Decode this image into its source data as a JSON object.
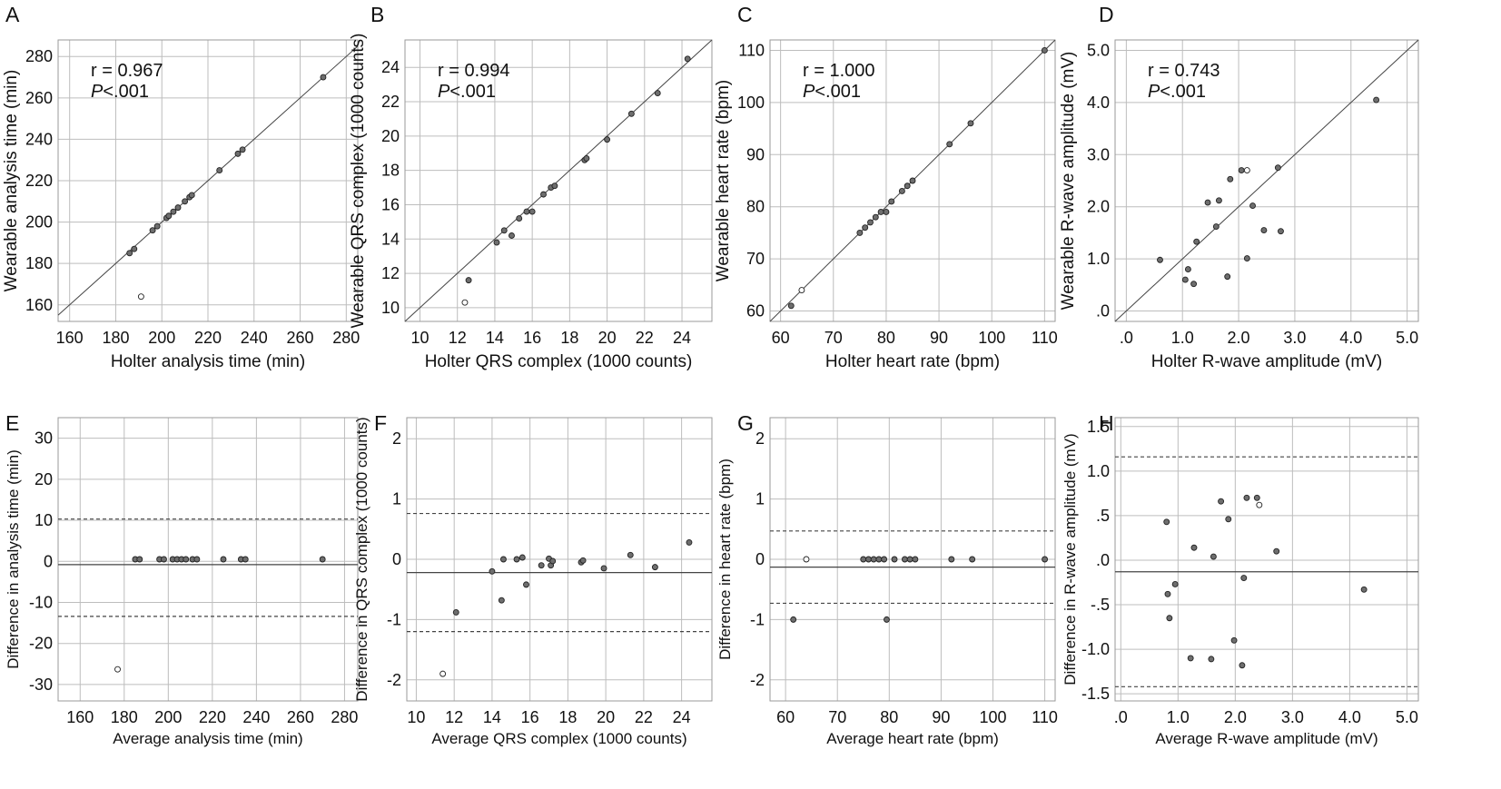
{
  "colors": {
    "grid": "#bdbdbd",
    "frame": "#9a9a9a",
    "line": "#444444",
    "point_fill": "#6e6e6e",
    "point_open_fill": "#ffffff",
    "point_stroke": "#222222"
  },
  "chart_data": [
    {
      "panel": "A",
      "type": "scatter",
      "xlabel": "Holter analysis time (min)",
      "ylabel": "Wearable analysis time (min)",
      "xlim": [
        155,
        285
      ],
      "ylim": [
        152,
        288
      ],
      "xticks": [
        160,
        180,
        200,
        220,
        240,
        260,
        280
      ],
      "xtick_labels": [
        "160",
        "180",
        "200",
        "220",
        "240",
        "260",
        "280"
      ],
      "yticks": [
        160,
        180,
        200,
        220,
        240,
        260,
        280
      ],
      "ytick_labels": [
        "160",
        "180",
        "200",
        "220",
        "240",
        "260",
        "280"
      ],
      "annotation_r": "r = 0.967",
      "annotation_p": "P",
      "annotation_p_rest": "<.001",
      "identity_line": true,
      "hlines": [],
      "points": [
        [
          186,
          185
        ],
        [
          188,
          187
        ],
        [
          196,
          196
        ],
        [
          198,
          198
        ],
        [
          202,
          202
        ],
        [
          203,
          203
        ],
        [
          205,
          205
        ],
        [
          207,
          207
        ],
        [
          210,
          210
        ],
        [
          212,
          212
        ],
        [
          213,
          213
        ],
        [
          225,
          225
        ],
        [
          233,
          233
        ],
        [
          235,
          235
        ],
        [
          270,
          270
        ]
      ],
      "open_points": [
        [
          191,
          164
        ]
      ]
    },
    {
      "panel": "B",
      "type": "scatter",
      "xlabel": "Holter QRS complex (1000 counts)",
      "ylabel": "Wearable QRS complex (1000 counts)",
      "xlim": [
        9.2,
        25.6
      ],
      "ylim": [
        9.2,
        25.6
      ],
      "xticks": [
        10,
        12,
        14,
        16,
        18,
        20,
        22,
        24
      ],
      "xtick_labels": [
        "10",
        "12",
        "14",
        "16",
        "18",
        "20",
        "22",
        "24"
      ],
      "yticks": [
        10,
        12,
        14,
        16,
        18,
        20,
        22,
        24
      ],
      "ytick_labels": [
        "10",
        "12",
        "14",
        "16",
        "18",
        "20",
        "22",
        "24"
      ],
      "annotation_r": "r = 0.994",
      "annotation_p": "P",
      "annotation_p_rest": "<.001",
      "identity_line": true,
      "hlines": [],
      "points": [
        [
          12.6,
          11.6
        ],
        [
          14.1,
          13.8
        ],
        [
          14.5,
          14.5
        ],
        [
          14.9,
          14.2
        ],
        [
          15.3,
          15.2
        ],
        [
          15.7,
          15.6
        ],
        [
          16.0,
          15.6
        ],
        [
          16.6,
          16.6
        ],
        [
          17.0,
          17.0
        ],
        [
          17.2,
          17.1
        ],
        [
          18.8,
          18.6
        ],
        [
          18.9,
          18.7
        ],
        [
          20.0,
          19.8
        ],
        [
          21.3,
          21.3
        ],
        [
          22.7,
          22.5
        ],
        [
          24.3,
          24.5
        ]
      ],
      "open_points": [
        [
          12.4,
          10.3
        ]
      ]
    },
    {
      "panel": "C",
      "type": "scatter",
      "xlabel": "Holter heart rate (bpm)",
      "ylabel": "Wearable heart rate (bpm)",
      "xlim": [
        58,
        112
      ],
      "ylim": [
        58,
        112
      ],
      "xticks": [
        60,
        70,
        80,
        90,
        100,
        110
      ],
      "xtick_labels": [
        "60",
        "70",
        "80",
        "90",
        "100",
        "110"
      ],
      "yticks": [
        60,
        70,
        80,
        90,
        100,
        110
      ],
      "ytick_labels": [
        "60",
        "70",
        "80",
        "90",
        "100",
        "110"
      ],
      "annotation_r": "r = 1.000",
      "annotation_p": "P",
      "annotation_p_rest": "<.001",
      "identity_line": true,
      "hlines": [],
      "points": [
        [
          62,
          61
        ],
        [
          75,
          75
        ],
        [
          76,
          76
        ],
        [
          77,
          77
        ],
        [
          78,
          78
        ],
        [
          79,
          79
        ],
        [
          80,
          79
        ],
        [
          81,
          81
        ],
        [
          83,
          83
        ],
        [
          84,
          84
        ],
        [
          85,
          85
        ],
        [
          92,
          92
        ],
        [
          96,
          96
        ],
        [
          110,
          110
        ]
      ],
      "open_points": [
        [
          64,
          64
        ]
      ]
    },
    {
      "panel": "D",
      "type": "scatter",
      "xlabel": "Holter R-wave amplitude (mV)",
      "ylabel": "Wearable R-wave amplitude (mV)",
      "xlim": [
        -0.2,
        5.2
      ],
      "ylim": [
        -0.2,
        5.2
      ],
      "xticks": [
        0,
        1,
        2,
        3,
        4,
        5
      ],
      "xtick_labels": [
        ".0",
        "1.0",
        "2.0",
        "3.0",
        "4.0",
        "5.0"
      ],
      "yticks": [
        0,
        1,
        2,
        3,
        4,
        5
      ],
      "ytick_labels": [
        ".0",
        "1.0",
        "2.0",
        "3.0",
        "4.0",
        "5.0"
      ],
      "annotation_r": "r = 0.743",
      "annotation_p": "P",
      "annotation_p_rest": "<.001",
      "identity_line": true,
      "hlines": [],
      "points": [
        [
          0.6,
          0.98
        ],
        [
          1.05,
          0.6
        ],
        [
          1.1,
          0.8
        ],
        [
          1.2,
          0.52
        ],
        [
          1.25,
          1.33
        ],
        [
          1.45,
          2.08
        ],
        [
          1.6,
          1.62
        ],
        [
          1.65,
          2.12
        ],
        [
          1.8,
          0.66
        ],
        [
          1.85,
          2.53
        ],
        [
          2.05,
          2.7
        ],
        [
          2.15,
          1.01
        ],
        [
          2.25,
          2.02
        ],
        [
          2.45,
          1.55
        ],
        [
          2.7,
          2.75
        ],
        [
          2.75,
          1.53
        ],
        [
          4.45,
          4.05
        ]
      ],
      "open_points": [
        [
          2.15,
          2.7
        ]
      ]
    },
    {
      "panel": "E",
      "type": "scatter",
      "xlabel": "Average analysis time (min)",
      "ylabel": "Difference in analysis time (min)",
      "xlim": [
        150,
        286
      ],
      "ylim": [
        -34,
        35
      ],
      "xticks": [
        160,
        180,
        200,
        220,
        240,
        260,
        280
      ],
      "xtick_labels": [
        "160",
        "180",
        "200",
        "220",
        "240",
        "260",
        "280"
      ],
      "yticks": [
        -30,
        -20,
        -10,
        0,
        10,
        20,
        30
      ],
      "ytick_labels": [
        "-30",
        "-20",
        "-10",
        "0",
        "10",
        "20",
        "30"
      ],
      "annotation_r": "",
      "annotation_p": "",
      "annotation_p_rest": "",
      "identity_line": false,
      "hlines": [
        {
          "y": -0.8,
          "style": "solid"
        },
        {
          "y": 10.3,
          "style": "dashed"
        },
        {
          "y": -13.4,
          "style": "dashed"
        }
      ],
      "points": [
        [
          185,
          0.5
        ],
        [
          187,
          0.5
        ],
        [
          196,
          0.5
        ],
        [
          198,
          0.5
        ],
        [
          202,
          0.5
        ],
        [
          204,
          0.5
        ],
        [
          206,
          0.5
        ],
        [
          208,
          0.5
        ],
        [
          211,
          0.5
        ],
        [
          213,
          0.5
        ],
        [
          225,
          0.5
        ],
        [
          233,
          0.5
        ],
        [
          235,
          0.5
        ],
        [
          270,
          0.5
        ]
      ],
      "open_points": [
        [
          177,
          -26.3
        ]
      ]
    },
    {
      "panel": "F",
      "type": "scatter",
      "xlabel": "Average QRS complex (1000 counts)",
      "ylabel": "Difference in QRS complex (1000 counts)",
      "xlim": [
        9.5,
        25.6
      ],
      "ylim": [
        -2.35,
        2.35
      ],
      "xticks": [
        10,
        12,
        14,
        16,
        18,
        20,
        22,
        24
      ],
      "xtick_labels": [
        "10",
        "12",
        "14",
        "16",
        "18",
        "20",
        "22",
        "24"
      ],
      "yticks": [
        -2,
        -1,
        0,
        1,
        2
      ],
      "ytick_labels": [
        "-2",
        "-1",
        "0",
        "1",
        "2"
      ],
      "annotation_r": "",
      "annotation_p": "",
      "annotation_p_rest": "",
      "identity_line": false,
      "hlines": [
        {
          "y": -0.22,
          "style": "solid"
        },
        {
          "y": 0.76,
          "style": "dashed"
        },
        {
          "y": -1.2,
          "style": "dashed"
        }
      ],
      "points": [
        [
          12.1,
          -0.88
        ],
        [
          14.0,
          -0.2
        ],
        [
          14.5,
          -0.68
        ],
        [
          14.6,
          0.0
        ],
        [
          15.3,
          0.0
        ],
        [
          15.6,
          0.03
        ],
        [
          15.8,
          -0.42
        ],
        [
          16.6,
          -0.1
        ],
        [
          17.0,
          0.01
        ],
        [
          17.1,
          -0.1
        ],
        [
          17.2,
          -0.03
        ],
        [
          18.7,
          -0.05
        ],
        [
          18.8,
          -0.02
        ],
        [
          19.9,
          -0.15
        ],
        [
          21.3,
          0.07
        ],
        [
          22.6,
          -0.13
        ],
        [
          24.4,
          0.28
        ]
      ],
      "open_points": [
        [
          11.4,
          -1.9
        ]
      ]
    },
    {
      "panel": "G",
      "type": "scatter",
      "xlabel": "Average heart rate (bpm)",
      "ylabel": "Difference in heart rate (bpm)",
      "xlim": [
        57,
        112
      ],
      "ylim": [
        -2.35,
        2.35
      ],
      "xticks": [
        60,
        70,
        80,
        90,
        100,
        110
      ],
      "xtick_labels": [
        "60",
        "70",
        "80",
        "90",
        "100",
        "110"
      ],
      "yticks": [
        -2,
        -1,
        0,
        1,
        2
      ],
      "ytick_labels": [
        "-2",
        "-1",
        "0",
        "1",
        "2"
      ],
      "annotation_r": "",
      "annotation_p": "",
      "annotation_p_rest": "",
      "identity_line": false,
      "hlines": [
        {
          "y": -0.13,
          "style": "solid"
        },
        {
          "y": 0.47,
          "style": "dashed"
        },
        {
          "y": -0.73,
          "style": "dashed"
        }
      ],
      "points": [
        [
          61.5,
          -1.0
        ],
        [
          75,
          0.0
        ],
        [
          76,
          0.0
        ],
        [
          77,
          0.0
        ],
        [
          78,
          0.0
        ],
        [
          79,
          0.0
        ],
        [
          79.5,
          -1.0
        ],
        [
          81,
          0.0
        ],
        [
          83,
          0.0
        ],
        [
          84,
          0.0
        ],
        [
          85,
          0.0
        ],
        [
          92,
          0.0
        ],
        [
          96,
          0.0
        ],
        [
          110,
          0.0
        ]
      ],
      "open_points": [
        [
          64,
          0.0
        ]
      ]
    },
    {
      "panel": "H",
      "type": "scatter",
      "xlabel": "Average R-wave amplitude (mV)",
      "ylabel": "Difference in R-wave amplitude (mV)",
      "xlim": [
        -0.1,
        5.2
      ],
      "ylim": [
        -1.58,
        1.6
      ],
      "xticks": [
        0,
        1,
        2,
        3,
        4,
        5
      ],
      "xtick_labels": [
        ".0",
        "1.0",
        "2.0",
        "3.0",
        "4.0",
        "5.0"
      ],
      "yticks": [
        -1.5,
        -1.0,
        -0.5,
        0,
        0.5,
        1.0,
        1.5
      ],
      "ytick_labels": [
        "-1.5",
        "-1.0",
        "-.5",
        ".0",
        ".5",
        "1.0",
        "1.5"
      ],
      "annotation_r": "",
      "annotation_p": "",
      "annotation_p_rest": "",
      "identity_line": false,
      "hlines": [
        {
          "y": -0.13,
          "style": "solid"
        },
        {
          "y": 1.16,
          "style": "dashed"
        },
        {
          "y": -1.42,
          "style": "dashed"
        }
      ],
      "points": [
        [
          0.8,
          0.43
        ],
        [
          0.82,
          -0.38
        ],
        [
          0.85,
          -0.65
        ],
        [
          0.95,
          -0.27
        ],
        [
          1.22,
          -1.1
        ],
        [
          1.28,
          0.14
        ],
        [
          1.58,
          -1.11
        ],
        [
          1.62,
          0.04
        ],
        [
          1.75,
          0.66
        ],
        [
          1.88,
          0.46
        ],
        [
          1.98,
          -0.9
        ],
        [
          2.12,
          -1.18
        ],
        [
          2.15,
          -0.2
        ],
        [
          2.2,
          0.7
        ],
        [
          2.38,
          0.7
        ],
        [
          2.72,
          0.1
        ],
        [
          4.25,
          -0.33
        ]
      ],
      "open_points": [
        [
          2.42,
          0.62
        ]
      ]
    }
  ]
}
